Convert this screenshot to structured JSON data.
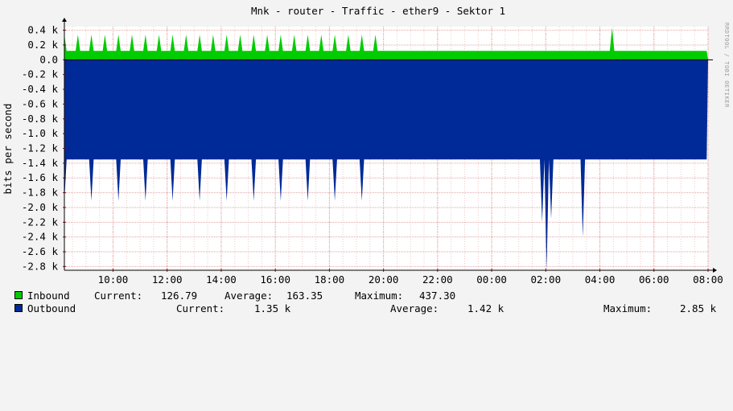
{
  "watermark": "RRDTOOL / TOBI OETIKER",
  "colors": {
    "inbound": "#00cc00",
    "outbound": "#002a97",
    "grid": "#e3a3a3",
    "plot_bg": "#ffffff",
    "page_bg": "#f3f3f3"
  },
  "chart_data": {
    "type": "area",
    "title": "Mnk - router - Traffic - ether9 - Sektor 1",
    "ylabel": "bits per second",
    "ylim": [
      -2850,
      450
    ],
    "yticks": [
      0.4,
      0.2,
      0.0,
      -0.2,
      -0.4,
      -0.6,
      -0.8,
      -1.0,
      -1.2,
      -1.4,
      -1.6,
      -1.8,
      -2.0,
      -2.2,
      -2.4,
      -2.6,
      -2.8
    ],
    "ytick_labels": [
      "0.4 k",
      "0.2 k",
      "0.0",
      "-0.2 k",
      "-0.4 k",
      "-0.6 k",
      "-0.8 k",
      "-1.0 k",
      "-1.2 k",
      "-1.4 k",
      "-1.6 k",
      "-1.8 k",
      "-2.0 k",
      "-2.2 k",
      "-2.4 k",
      "-2.6 k",
      "-2.8 k"
    ],
    "xlim_hours": [
      8.2,
      32.0
    ],
    "xticks": [
      "10:00",
      "12:00",
      "14:00",
      "16:00",
      "18:00",
      "20:00",
      "22:00",
      "00:00",
      "02:00",
      "04:00",
      "06:00",
      "08:00"
    ],
    "grid": true,
    "series": [
      {
        "name": "Inbound",
        "baseline": 120,
        "spike_every_min": 30,
        "spike_peak": 340,
        "outliers": [
          {
            "time": "04:25",
            "value": 437
          }
        ],
        "current": "126.79",
        "average": "163.35",
        "maximum": "437.30"
      },
      {
        "name": "Outbound",
        "baseline": -1350,
        "spike_every_min": 60,
        "spike_peak": -1910,
        "outliers": [
          {
            "time": "01:50",
            "value": -2200
          },
          {
            "time": "02:00",
            "value": -2850
          },
          {
            "time": "02:10",
            "value": -2150
          },
          {
            "time": "03:20",
            "value": -2400
          }
        ],
        "current": "1.35 k",
        "average": "1.42 k",
        "maximum": "2.85 k"
      }
    ]
  },
  "legend": {
    "inbound": {
      "label": "Inbound",
      "current_label": "Current:",
      "current_value": "126.79",
      "average_label": "Average:",
      "average_value": "163.35",
      "maximum_label": "Maximum:",
      "maximum_value": "437.30"
    },
    "outbound": {
      "label": "Outbound",
      "current_label": "Current:",
      "current_value": "1.35 k",
      "average_label": "Average:",
      "average_value": "1.42 k",
      "maximum_label": "Maximum:",
      "maximum_value": "2.85 k"
    }
  }
}
